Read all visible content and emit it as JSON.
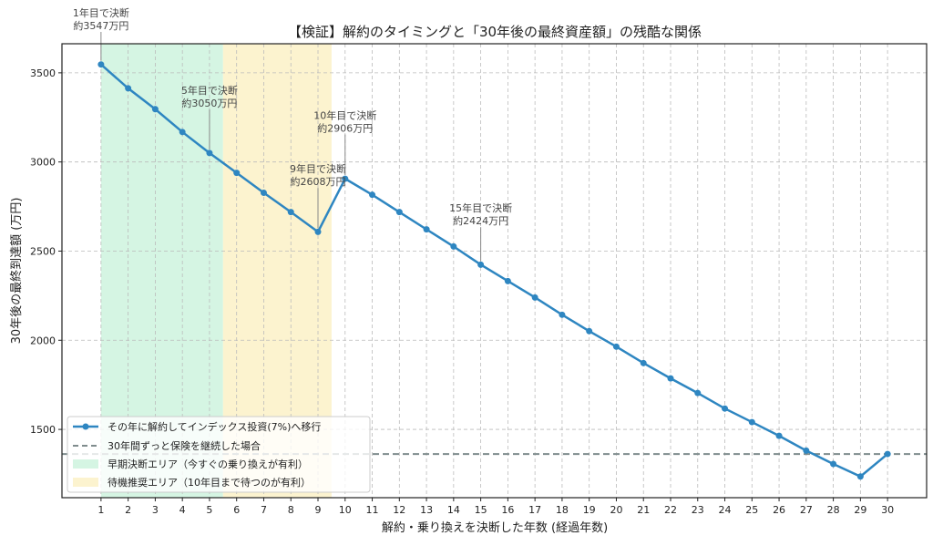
{
  "chart_data": {
    "type": "line",
    "title": "【検証】解約のタイミングと「30年後の最終資産額」の残酷な関係",
    "xlabel": "解約・乗り換えを決断した年数 (経過年数)",
    "ylabel": "30年後の最終到達額 (万円)",
    "xlim": [
      -0.44,
      31.44
    ],
    "ylim": [
      1117,
      3663
    ],
    "xticks": [
      1,
      2,
      3,
      4,
      5,
      6,
      7,
      8,
      9,
      10,
      11,
      12,
      13,
      14,
      15,
      16,
      17,
      18,
      19,
      20,
      21,
      22,
      23,
      24,
      25,
      26,
      27,
      28,
      29,
      30
    ],
    "yticks": [
      1500,
      2000,
      2500,
      3000,
      3500
    ],
    "grid": true,
    "legend_placement": "lower-left",
    "series": [
      {
        "name": "その年に解約してインデックス投資(7%)へ移行",
        "color": "#2e86c1",
        "x": [
          1,
          2,
          3,
          4,
          5,
          6,
          7,
          8,
          9,
          10,
          11,
          12,
          13,
          14,
          15,
          16,
          17,
          18,
          19,
          20,
          21,
          22,
          23,
          24,
          25,
          26,
          27,
          28,
          29,
          30
        ],
        "values": [
          3547,
          3413,
          3296,
          3168,
          3050,
          2939,
          2827,
          2719,
          2608,
          2906,
          2816,
          2719,
          2622,
          2526,
          2424,
          2332,
          2240,
          2143,
          2051,
          1964,
          1872,
          1786,
          1704,
          1617,
          1541,
          1464,
          1381,
          1306,
          1236,
          1362
        ]
      }
    ],
    "hlines": [
      {
        "name": "30年間ずっと保険を継続した場合",
        "value": 1362,
        "color": "#7f8c8d",
        "style": "dashed"
      }
    ],
    "spans": [
      {
        "name": "早期決断エリア（今すぐの乗り換えが有利）",
        "from": 1,
        "to": 5.5,
        "color": "#d5f5e3"
      },
      {
        "name": "待機推奨エリア（10年目まで待つのが有利）",
        "from": 5.5,
        "to": 9.5,
        "color": "#fcf3cf"
      }
    ],
    "annotations": [
      {
        "x": 1,
        "y": 3547,
        "line1": "1年目で決断",
        "line2": "約3547万円",
        "ty": 3755
      },
      {
        "x": 5,
        "y": 3050,
        "line1": "5年目で決断",
        "line2": "約3050万円",
        "ty": 3320
      },
      {
        "x": 9,
        "y": 2608,
        "line1": "9年目で決断",
        "line2": "約2608万円",
        "ty": 2880
      },
      {
        "x": 10,
        "y": 2906,
        "line1": "10年目で決断",
        "line2": "約2906万円",
        "ty": 3180
      },
      {
        "x": 15,
        "y": 2424,
        "line1": "15年目で決断",
        "line2": "約2424万円",
        "ty": 2660
      }
    ]
  }
}
